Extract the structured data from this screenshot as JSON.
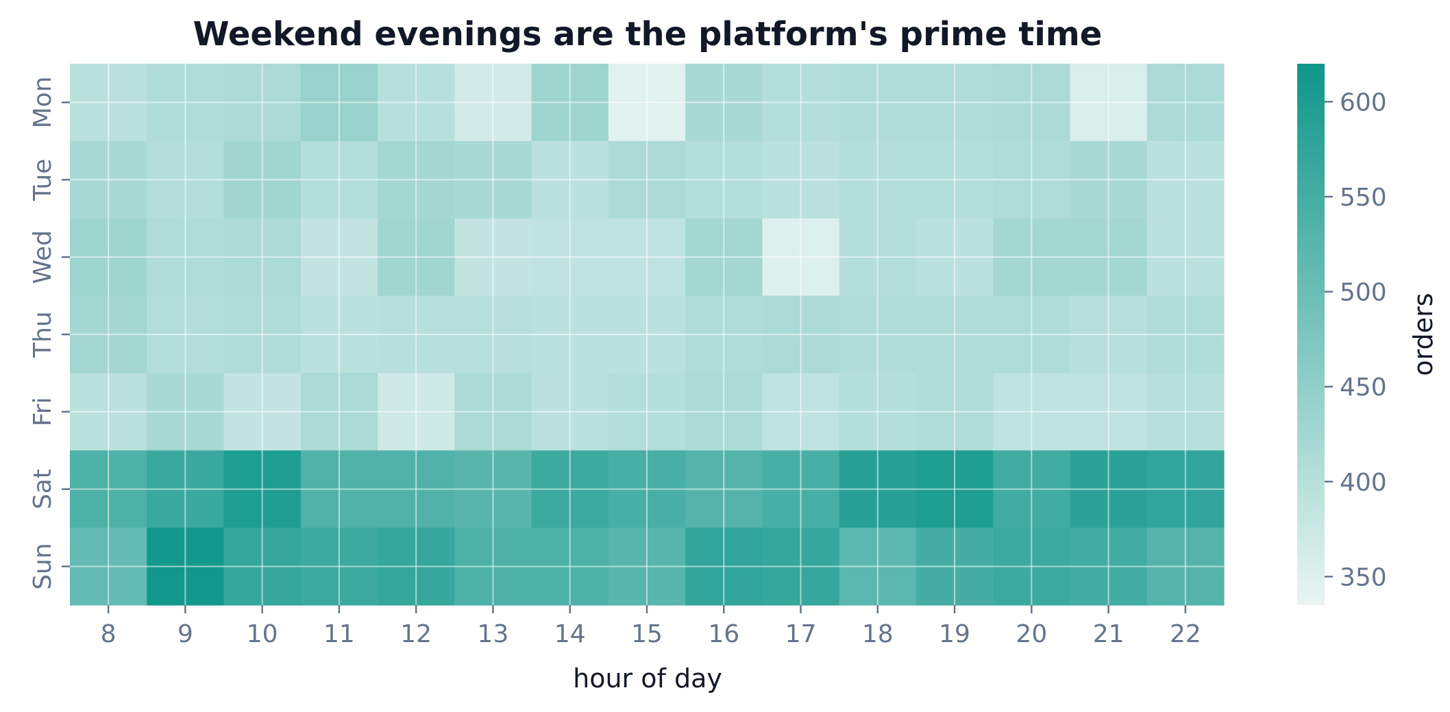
{
  "chart_data": {
    "type": "heatmap",
    "title": "Weekend evenings are the platform's prime time",
    "xlabel": "hour of day",
    "ylabel": "",
    "colorbar_label": "orders",
    "x": [
      8,
      9,
      10,
      11,
      12,
      13,
      14,
      15,
      16,
      17,
      18,
      19,
      20,
      21,
      22
    ],
    "y": [
      "Mon",
      "Tue",
      "Wed",
      "Thu",
      "Fri",
      "Sat",
      "Sun"
    ],
    "values": [
      [
        395,
        410,
        415,
        440,
        400,
        365,
        435,
        345,
        420,
        405,
        410,
        410,
        415,
        355,
        415
      ],
      [
        420,
        405,
        430,
        405,
        425,
        420,
        395,
        415,
        405,
        395,
        405,
        405,
        410,
        420,
        395
      ],
      [
        435,
        410,
        415,
        385,
        430,
        385,
        390,
        390,
        425,
        350,
        405,
        395,
        425,
        425,
        395
      ],
      [
        425,
        405,
        410,
        395,
        400,
        400,
        395,
        395,
        410,
        415,
        410,
        410,
        410,
        400,
        410
      ],
      [
        395,
        420,
        385,
        415,
        370,
        415,
        395,
        405,
        415,
        390,
        405,
        410,
        390,
        390,
        400
      ],
      [
        540,
        565,
        600,
        535,
        535,
        525,
        560,
        545,
        530,
        545,
        590,
        600,
        555,
        585,
        575
      ],
      [
        510,
        615,
        570,
        560,
        570,
        540,
        540,
        525,
        575,
        570,
        520,
        550,
        560,
        555,
        530
      ]
    ],
    "colorbar_range": [
      335,
      620
    ],
    "colorbar_ticks": [
      350,
      400,
      450,
      500,
      550,
      600
    ],
    "colormap": [
      "#e9f5f3",
      "#0f968a"
    ],
    "grid": true
  }
}
